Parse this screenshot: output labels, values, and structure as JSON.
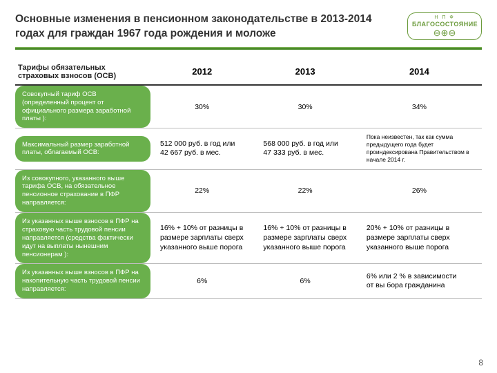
{
  "title": "Основные изменения в пенсионном законодательстве в 2013-2014 годах для граждан 1967 года рождения и моложе",
  "logo": {
    "top": "Н П Ф",
    "brand": "БЛАГОСОСТОЯНИЕ"
  },
  "page_number": "8",
  "colors": {
    "accent_green": "#6ab04c",
    "divider_green": "#4a8a2a",
    "border_gray": "#bdbdbd"
  },
  "columns": {
    "label": "Тарифы обязательных страховых взносов (ОСВ)",
    "y2012": "2012",
    "y2013": "2013",
    "y2014": "2014"
  },
  "rows": [
    {
      "label": "Совокупный тариф ОСВ (определенный процент от официального размера заработной платы ):",
      "y2012": "30%",
      "y2013": "30%",
      "y2014": "34%",
      "center": true
    },
    {
      "label": "Максимальный размер заработной платы, облагаемый ОСВ:",
      "y2012": "512 000 руб. в год или\n42 667 руб. в мес.",
      "y2013": "568 000 руб. в год или\n47 333 руб. в мес.",
      "y2014": "Пока неизвестен, так как сумма предыдущего года будет проиндексирована Правительством в начале 2014 г.",
      "center": false,
      "smallLast": true
    },
    {
      "label": "Из совокупного, указанного выше тарифа ОСВ, на обязательное пенсионное страхование в ПФР направляется:",
      "y2012": "22%",
      "y2013": "22%",
      "y2014": "26%",
      "center": true
    },
    {
      "label": "Из указанных выше взносов в ПФР на страховую часть трудовой пенсии направляется (средства фактически идут на выплаты нынешним пенсионерам ):",
      "y2012": "16% + 10% от разницы в размере зарплаты сверх указанного выше порога",
      "y2013": "16% + 10% от разницы в размере зарплаты сверх указанного выше порога",
      "y2014": "20% + 10% от разницы в размере зарплаты сверх указанного выше порога",
      "center": false
    },
    {
      "label": "Из указанных выше взносов в ПФР на накопительную часть трудовой пенсии направляется:",
      "y2012": "6%",
      "y2013": "6%",
      "y2014": "6% или 2 % в зависимости\nот вы бора гражданина",
      "center": false,
      "centerFirstTwo": true
    }
  ]
}
